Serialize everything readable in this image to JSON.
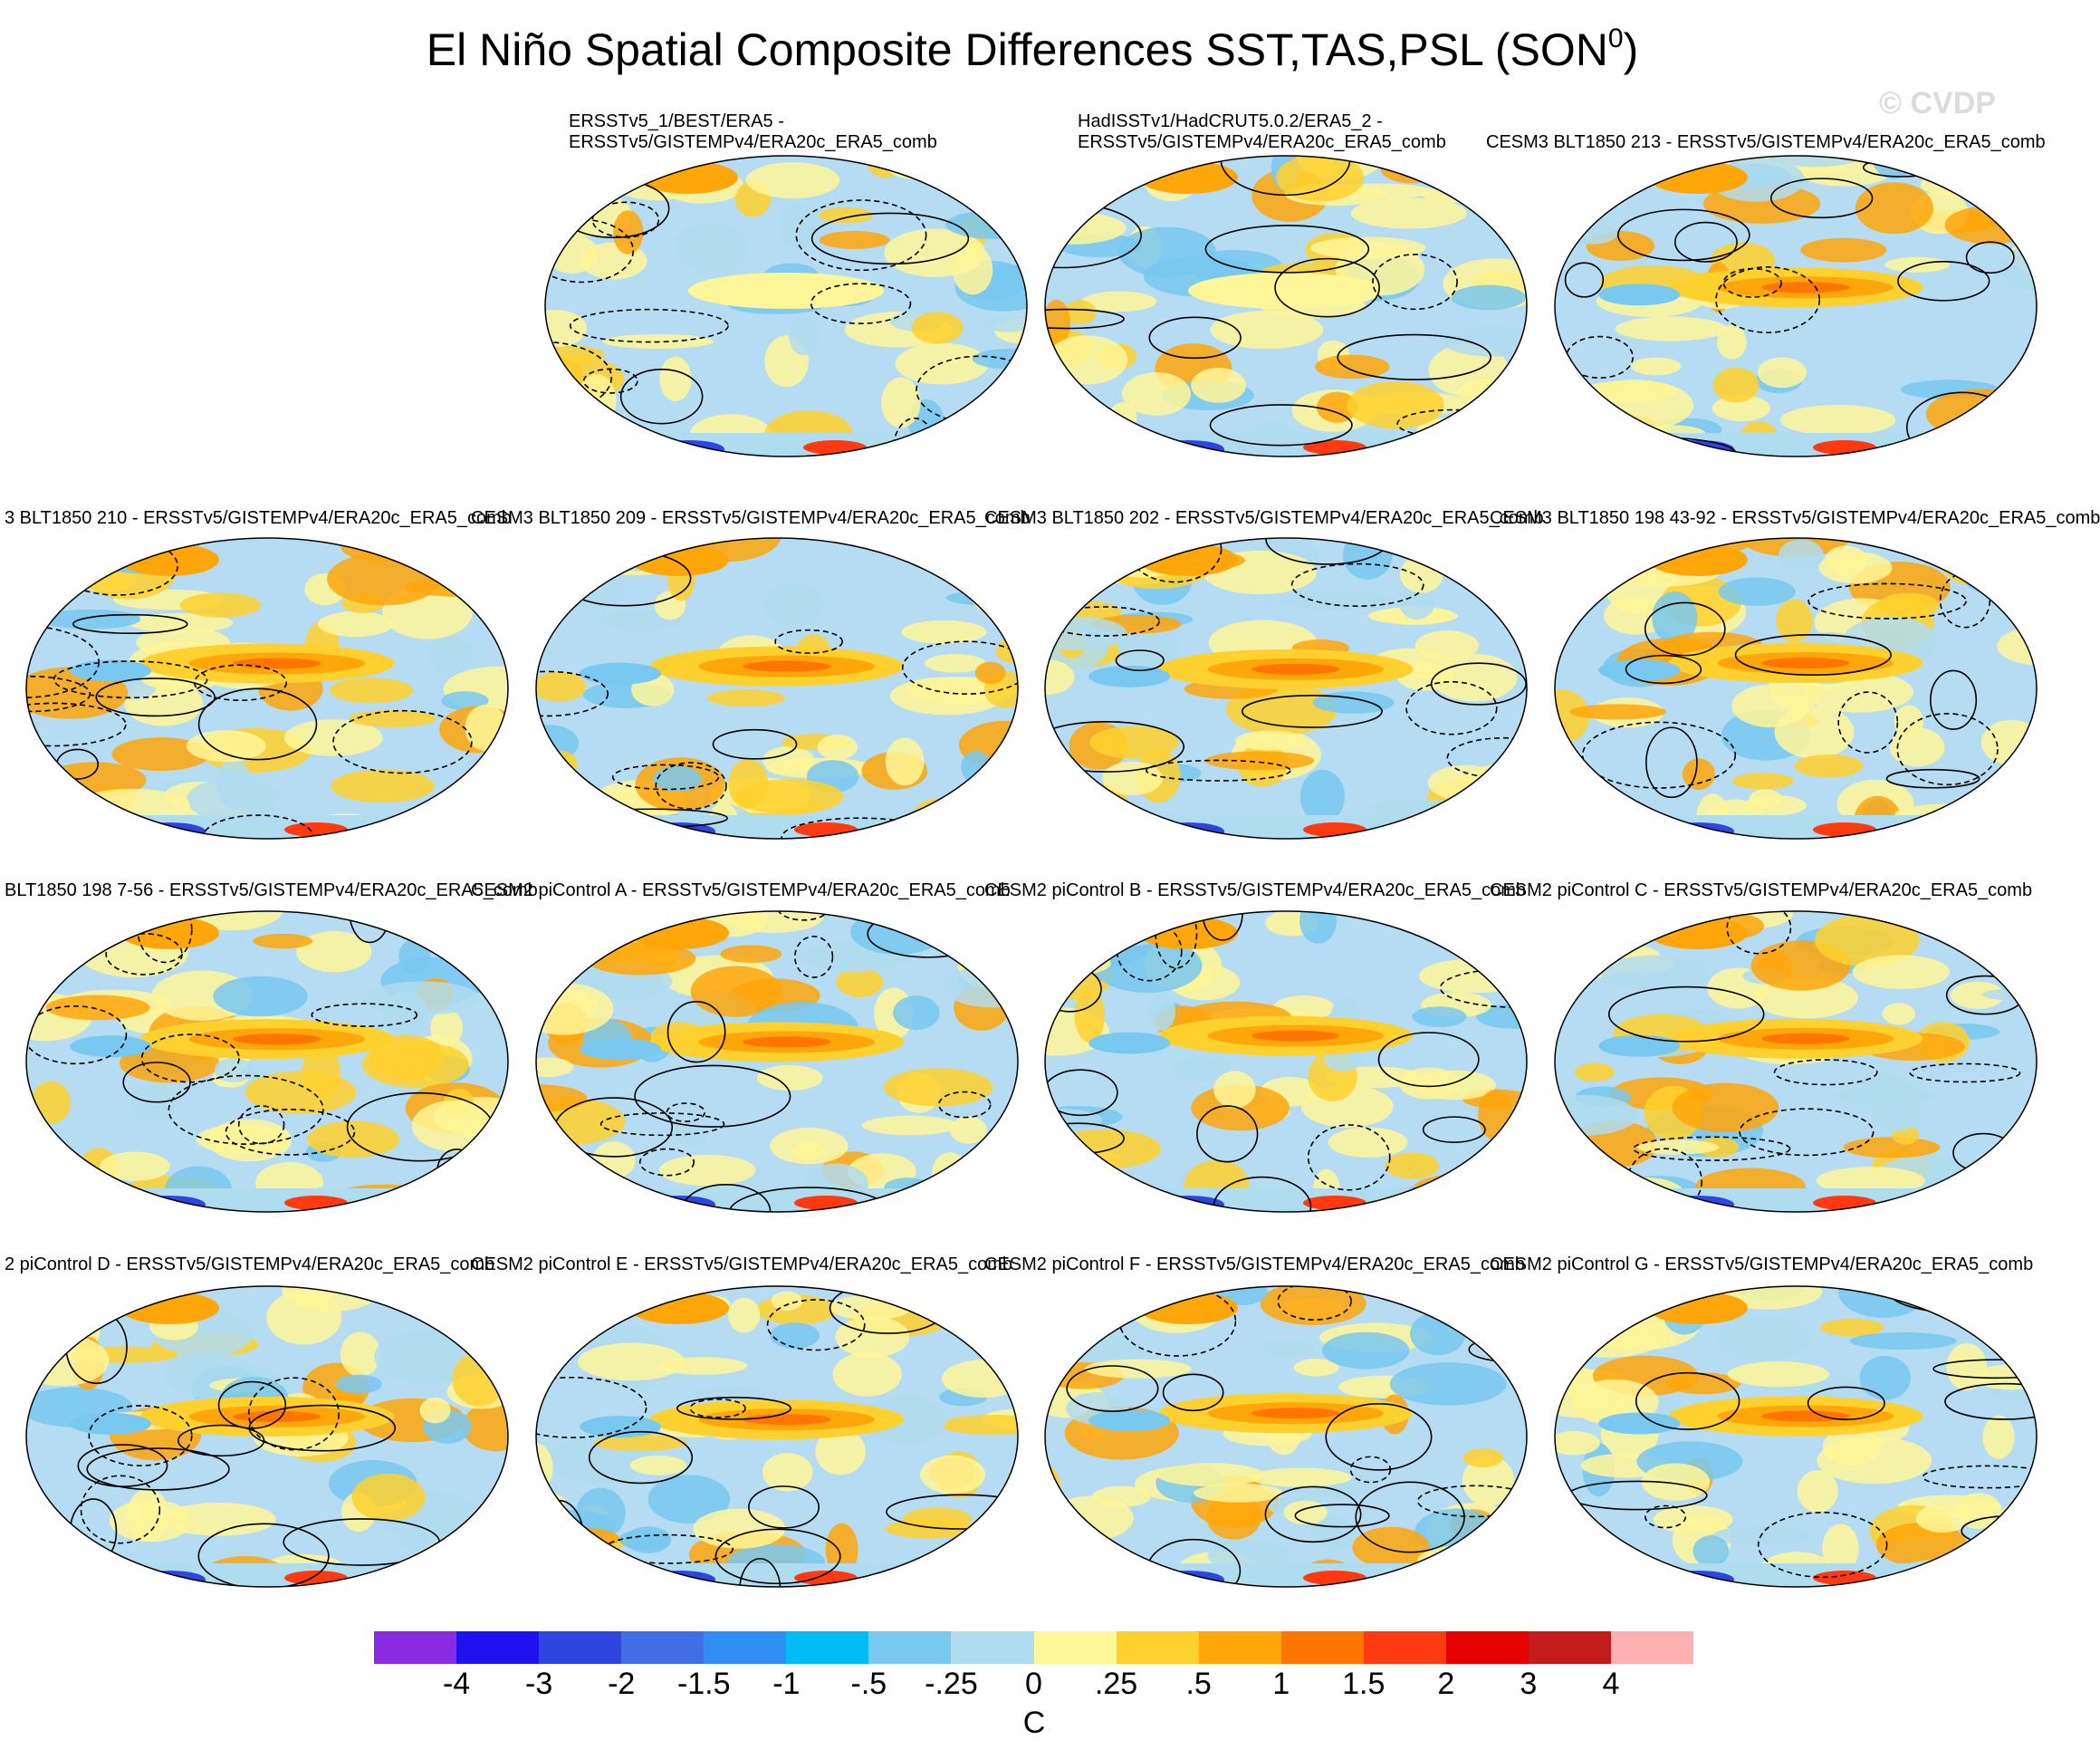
{
  "title": {
    "text": "El Niño Spatial Composite Differences SST,TAS,PSL (SON",
    "superscript": "0",
    "close": ")"
  },
  "watermark": "© CVDP",
  "panels": [
    {
      "id": "p1",
      "line1": "ERSSTv5_1/BEST/ERA5 -",
      "line2": "ERSSTv5/GISTEMPv4/ERA20c_ERA5_comb"
    },
    {
      "id": "p2",
      "line1": "HadISSTv1/HadCRUT5.0.2/ERA5_2 -",
      "line2": "ERSSTv5/GISTEMPv4/ERA20c_ERA5_comb"
    },
    {
      "id": "p3",
      "line1": "CESM3 BLT1850 213 - ERSSTv5/GISTEMPv4/ERA20c_ERA5_comb"
    },
    {
      "id": "p4",
      "line1": "3 BLT1850 210 - ERSSTv5/GISTEMPv4/ERA20c_ERA5_comb"
    },
    {
      "id": "p5",
      "line1": "CESM3 BLT1850 209 - ERSSTv5/GISTEMPv4/ERA20c_ERA5_comb"
    },
    {
      "id": "p6",
      "line1": "CESM3 BLT1850 202 - ERSSTv5/GISTEMPv4/ERA20c_ERA5_comb"
    },
    {
      "id": "p7",
      "line1": "CESM3 BLT1850 198 43-92 - ERSSTv5/GISTEMPv4/ERA20c_ERA5_comb"
    },
    {
      "id": "p8",
      "line1": "BLT1850 198 7-56 - ERSSTv5/GISTEMPv4/ERA20c_ERA5_comb"
    },
    {
      "id": "p9",
      "line1": "CESM2 piControl A - ERSSTv5/GISTEMPv4/ERA20c_ERA5_comb"
    },
    {
      "id": "p10",
      "line1": "CESM2 piControl B - ERSSTv5/GISTEMPv4/ERA20c_ERA5_comb"
    },
    {
      "id": "p11",
      "line1": "CESM2 piControl C - ERSSTv5/GISTEMPv4/ERA20c_ERA5_comb"
    },
    {
      "id": "p12",
      "line1": "2 piControl D - ERSSTv5/GISTEMPv4/ERA20c_ERA5_comb"
    },
    {
      "id": "p13",
      "line1": "CESM2 piControl E - ERSSTv5/GISTEMPv4/ERA20c_ERA5_comb"
    },
    {
      "id": "p14",
      "line1": "CESM2 piControl F - ERSSTv5/GISTEMPv4/ERA20c_ERA5_comb"
    },
    {
      "id": "p15",
      "line1": "CESM2 piControl G - ERSSTv5/GISTEMPv4/ERA20c_ERA5_comb"
    }
  ],
  "colorbar": {
    "units": "C",
    "colors": [
      "#8a2be2",
      "#1e12f0",
      "#2f45e0",
      "#3f6ee6",
      "#2f8ff2",
      "#00bcf2",
      "#78c8f0",
      "#b0dcf0",
      "#fff699",
      "#ffd12e",
      "#ffa60a",
      "#ff7500",
      "#ff3a10",
      "#e60000",
      "#c41c1c",
      "#ffb0b0"
    ],
    "labels": [
      "-4",
      "-3",
      "-2",
      "-1.5",
      "-1",
      "-.5",
      "-.25",
      "0",
      ".25",
      ".5",
      "1",
      "1.5",
      "2",
      "3",
      "4"
    ]
  },
  "map_style": {
    "ocean_fill": "#b5dcf2",
    "land_outline": "#ffffff",
    "contour": "#000000",
    "coast": "#888888"
  }
}
